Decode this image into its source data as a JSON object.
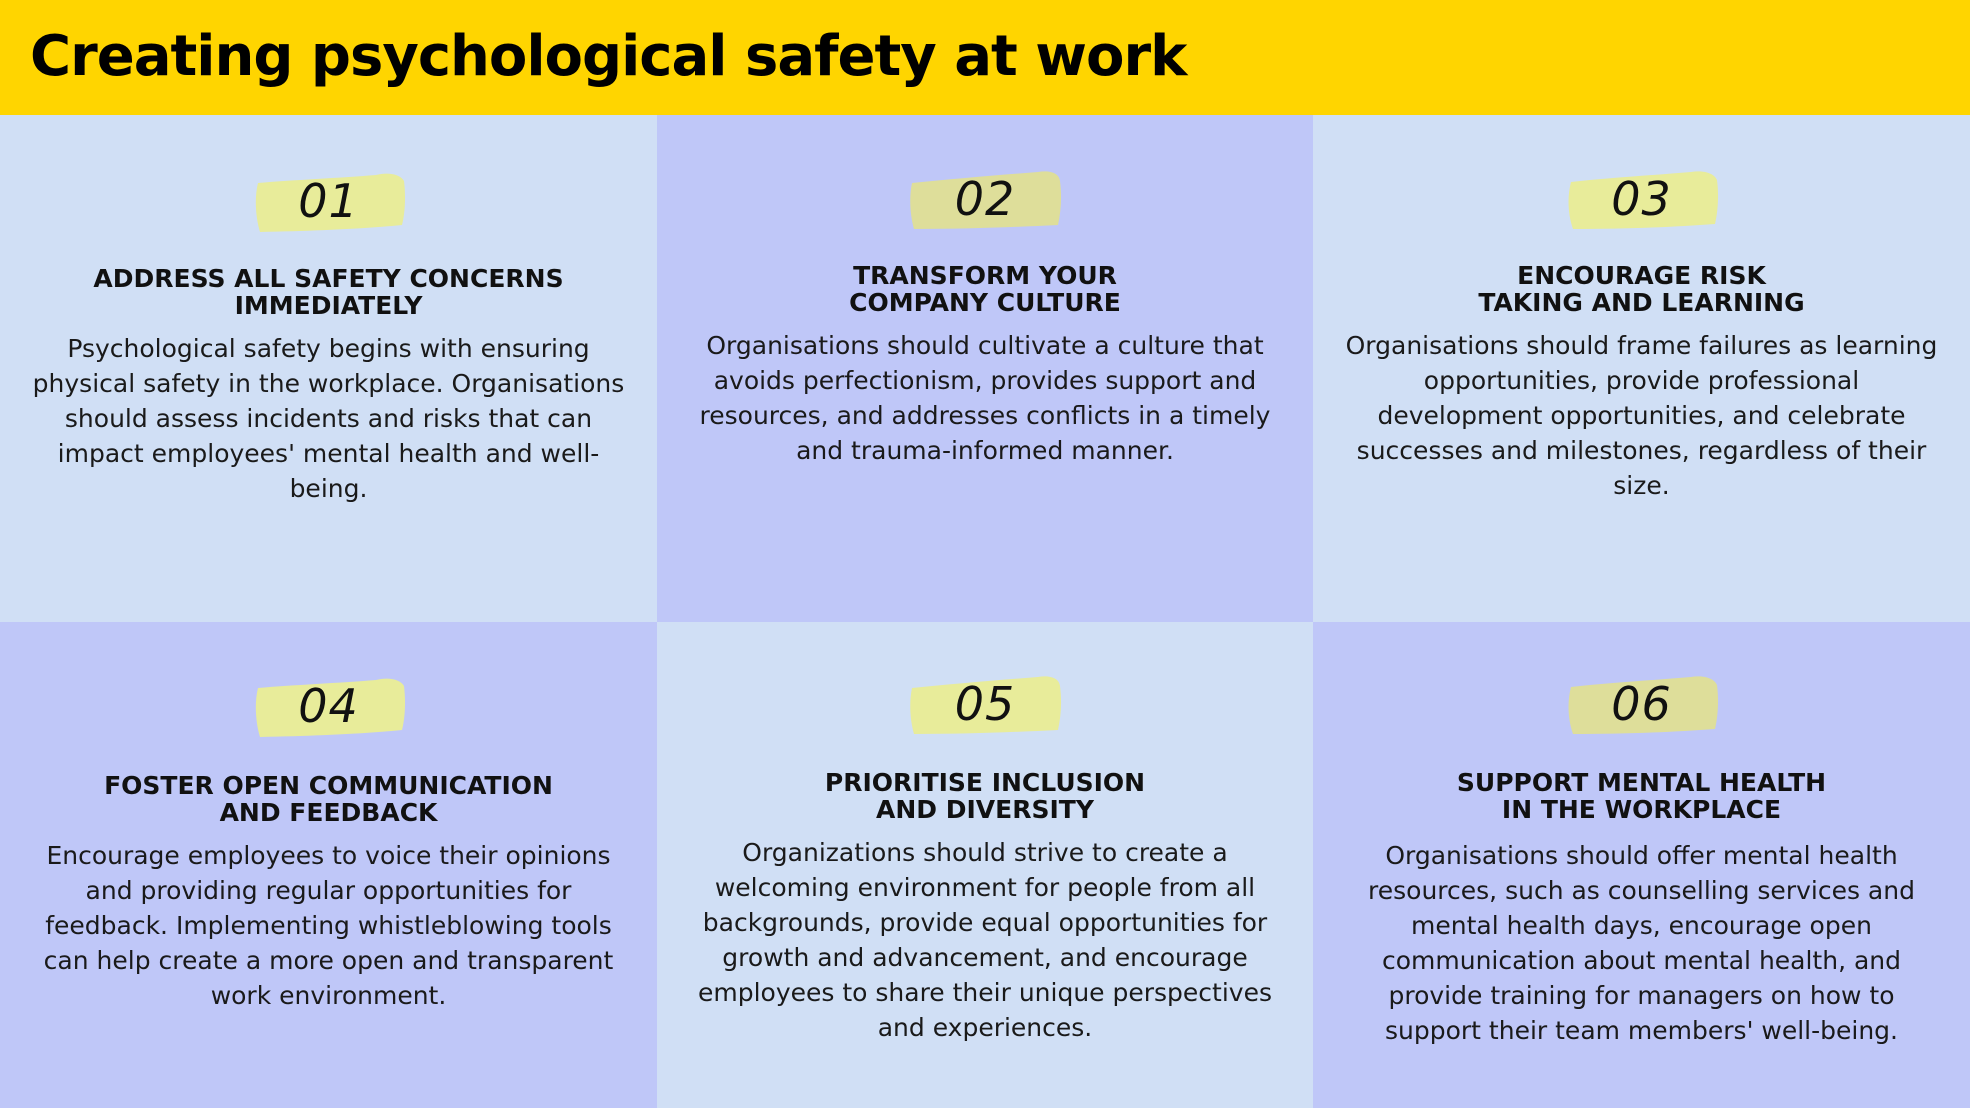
{
  "title": "Creating psychological safety at work",
  "colors": {
    "header": "#FFD500",
    "light_cell": "#D0DFF5",
    "dark_cell": "#BFC7F8",
    "badge": "#E8EC9A",
    "badge_alt": "#DEDE9A"
  },
  "items": [
    {
      "number": "01",
      "heading": "ADDRESS ALL SAFETY CONCERNS\nIMMEDIATELY",
      "body": "Psychological safety begins with ensuring physical safety in the workplace. Organisations should assess incidents and risks that can impact employees' mental health and well-being."
    },
    {
      "number": "02",
      "heading": "TRANSFORM YOUR\nCOMPANY CULTURE",
      "body": "Organisations should cultivate a culture that avoids perfectionism, provides support and resources, and addresses conflicts in a timely and trauma-informed manner."
    },
    {
      "number": "03",
      "heading": "ENCOURAGE RISK\nTAKING AND LEARNING",
      "body": "Organisations should frame failures as learning opportunities, provide professional development opportunities, and celebrate successes and milestones, regardless of their size."
    },
    {
      "number": "04",
      "heading": "FOSTER OPEN COMMUNICATION\nAND FEEDBACK",
      "body": "Encourage employees to voice their opinions and providing regular opportunities for feedback. Implementing whistleblowing tools can help create a more open and transparent work environment."
    },
    {
      "number": "05",
      "heading": "PRIORITISE INCLUSION\nAND DIVERSITY",
      "body": "Organizations should strive to create a welcoming environment for people from all backgrounds, provide equal opportunities for growth and advancement, and encourage employees to share their unique perspectives and experiences."
    },
    {
      "number": "06",
      "heading": "SUPPORT MENTAL HEALTH\nIN THE WORKPLACE",
      "body": "Organisations should offer mental health resources, such as counselling services and mental health days, encourage open communication about mental health, and provide training for managers on how to support their team members' well-being."
    }
  ]
}
